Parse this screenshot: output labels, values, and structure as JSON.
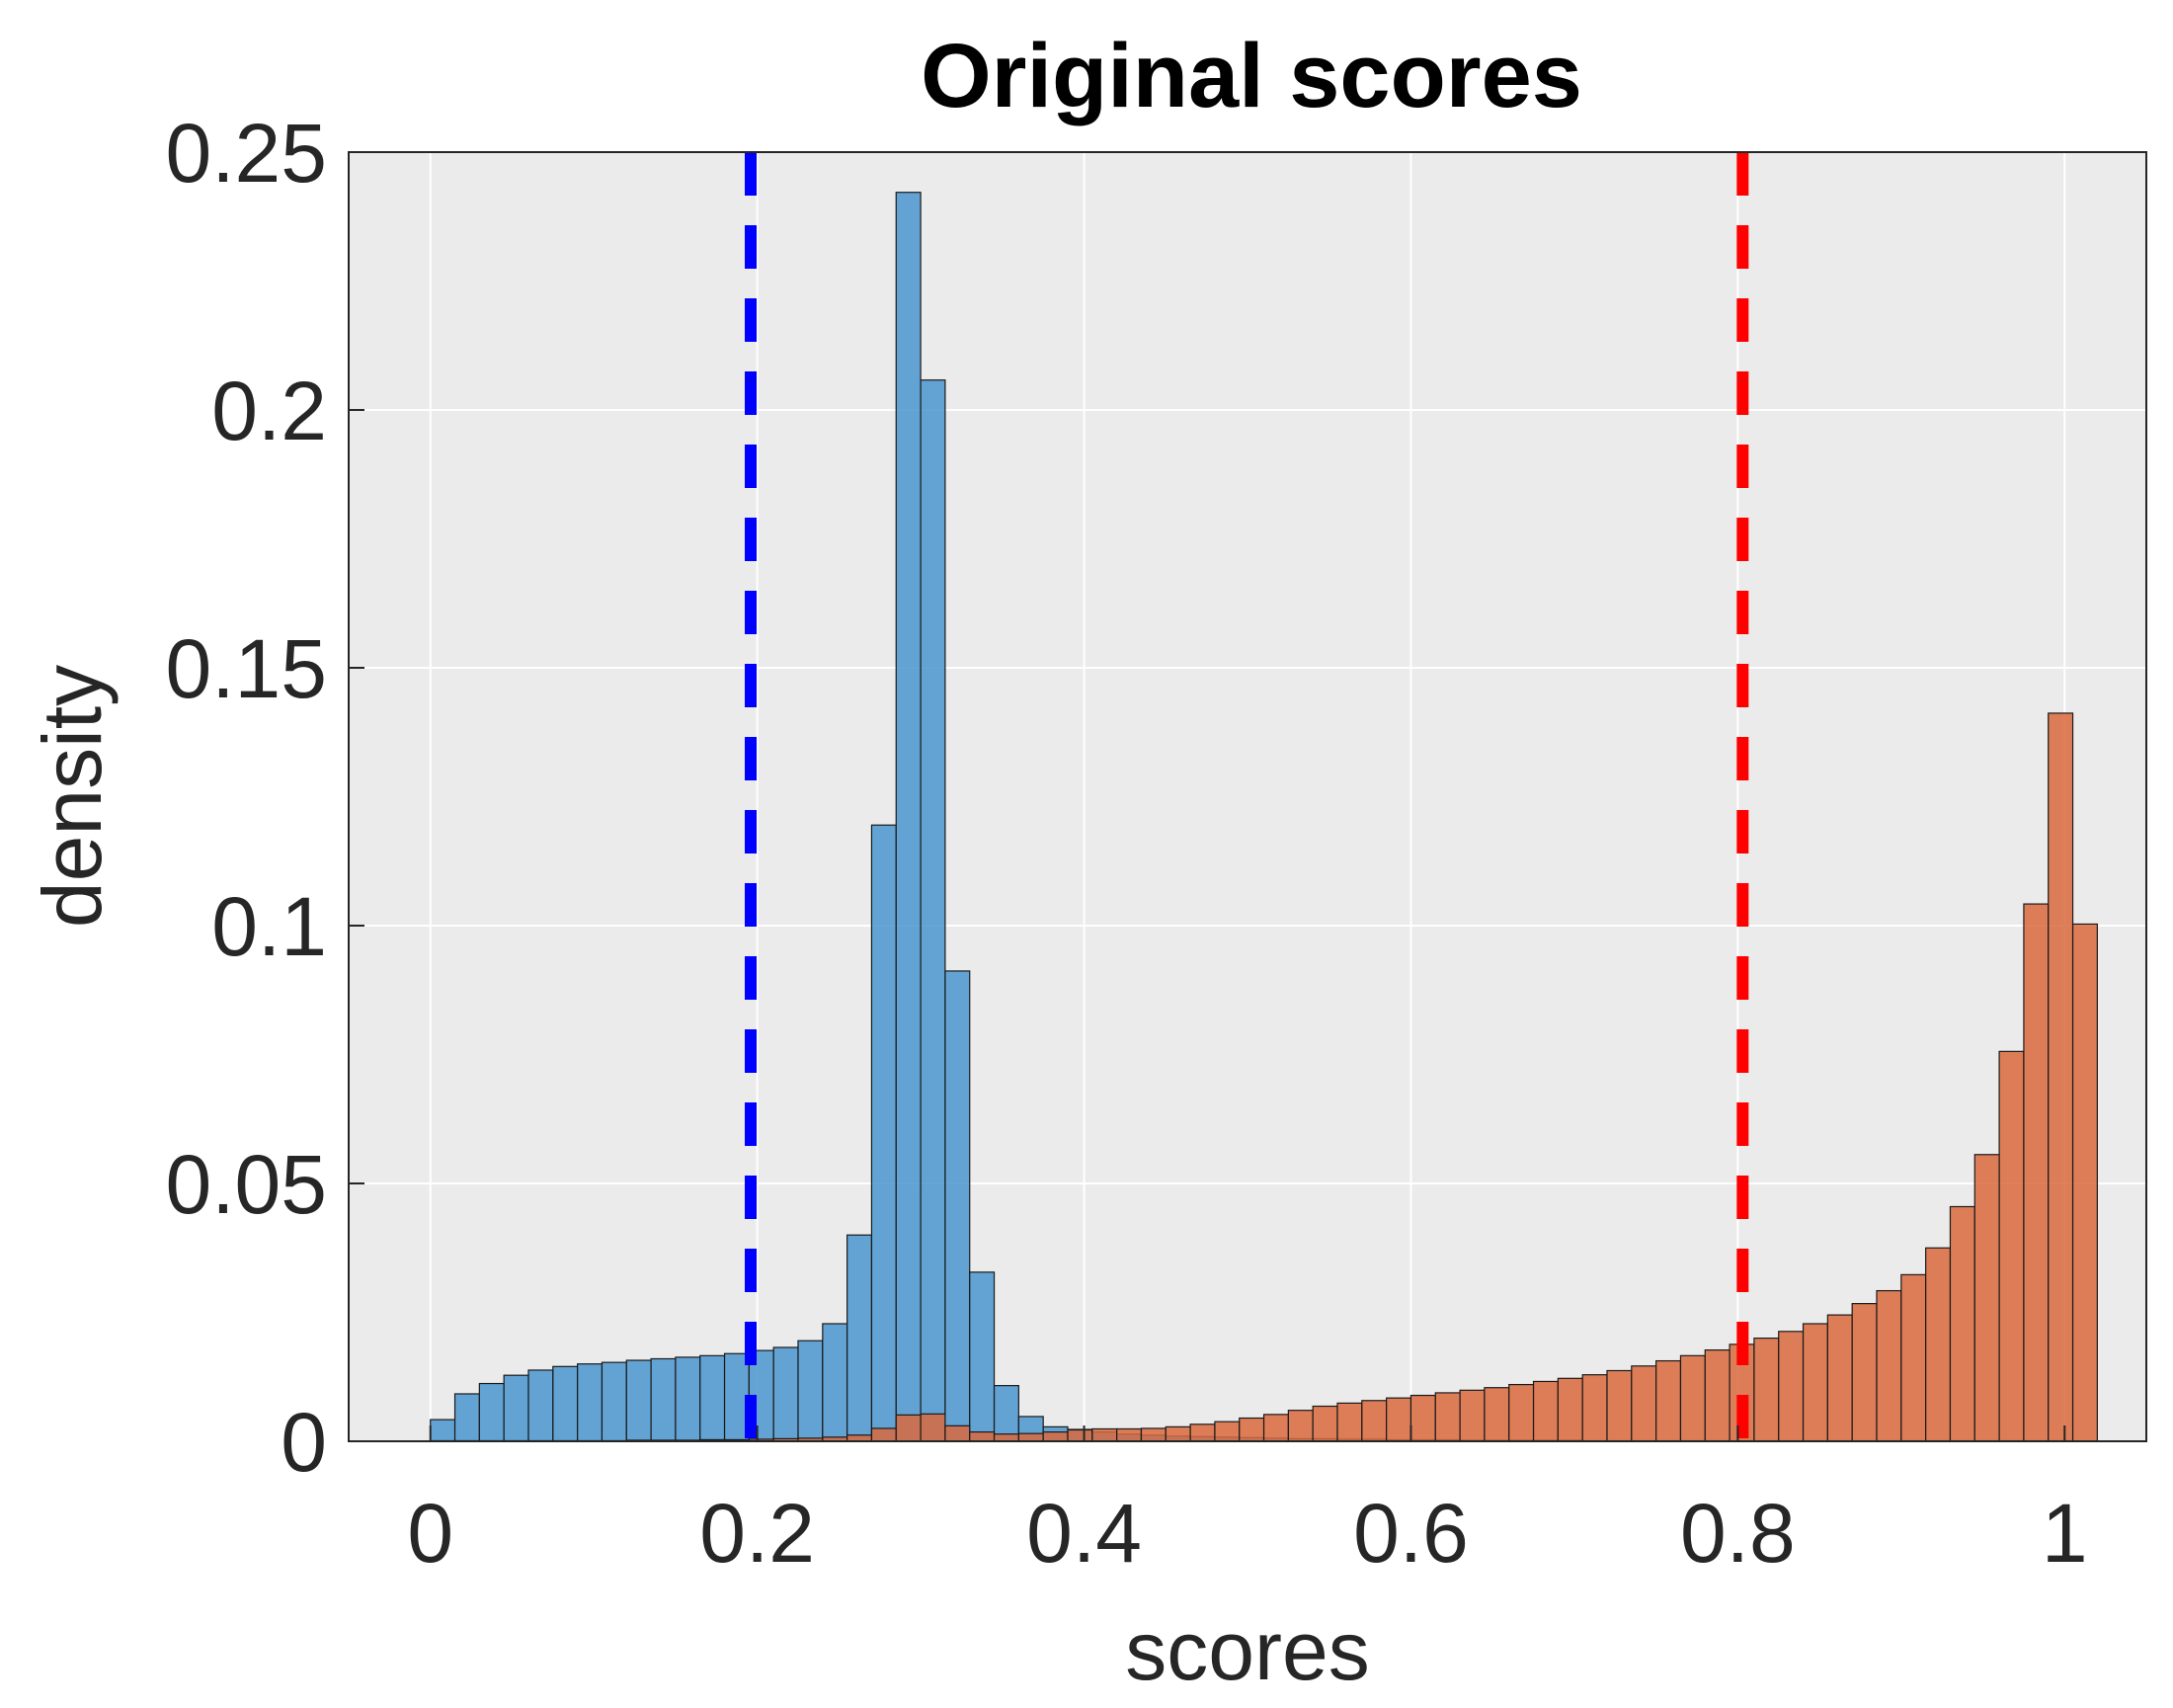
{
  "chart_data": {
    "type": "bar",
    "title": "Original scores",
    "xlabel": "scores",
    "ylabel": "density",
    "xlim": [
      -0.05,
      1.05
    ],
    "ylim": [
      0,
      0.25
    ],
    "xticks": [
      "0",
      "0.2",
      "0.4",
      "0.6",
      "0.8",
      "1"
    ],
    "xtick_values": [
      0,
      0.2,
      0.4,
      0.6,
      0.8,
      1
    ],
    "yticks": [
      "0",
      "0.05",
      "0.1",
      "0.15",
      "0.2",
      "0.25"
    ],
    "ytick_values": [
      0,
      0.05,
      0.1,
      0.15,
      0.2,
      0.25
    ],
    "grid": true,
    "bin_width": 0.015,
    "bin_start": 0,
    "series": [
      {
        "color": "#4a96cf",
        "values": [
          0.0042,
          0.0092,
          0.0112,
          0.0128,
          0.0138,
          0.0145,
          0.015,
          0.0153,
          0.0157,
          0.016,
          0.0163,
          0.0166,
          0.017,
          0.0176,
          0.0182,
          0.0195,
          0.0228,
          0.04,
          0.1195,
          0.2422,
          0.2058,
          0.0912,
          0.0328,
          0.0108,
          0.0048,
          0.0028,
          0.0023,
          0.0018,
          0.0014,
          0.0012,
          0.001,
          0.0009,
          0.0008,
          0.0007,
          0.0006,
          0.0005,
          0.0005,
          0.0004,
          0.0004,
          0.0003,
          0.0003,
          0.0003,
          0.0002,
          0.0002,
          0.0002,
          0.0002,
          0.0002,
          0.0001,
          0.0001,
          0.0001,
          0.0001,
          0.0001,
          0.0001,
          0.0001,
          0.0001,
          0.0001,
          0.0001,
          0.0001,
          0.0001,
          0.0001,
          0.0001,
          0.0001,
          0.0001,
          0.0001,
          0.0001,
          0.0001,
          0.0001
        ]
      },
      {
        "color": "#d96a3d",
        "values": [
          0.0001,
          0.0001,
          0.0001,
          0.0001,
          0.0001,
          0.0001,
          0.0001,
          0.0001,
          0.0002,
          0.0002,
          0.0002,
          0.0003,
          0.0003,
          0.0004,
          0.0005,
          0.0006,
          0.0008,
          0.0012,
          0.0025,
          0.0051,
          0.0053,
          0.003,
          0.0018,
          0.0014,
          0.0015,
          0.0018,
          0.0022,
          0.0024,
          0.0024,
          0.0025,
          0.0028,
          0.0033,
          0.0038,
          0.0045,
          0.0052,
          0.006,
          0.0068,
          0.0074,
          0.0079,
          0.0084,
          0.0089,
          0.0094,
          0.0099,
          0.0104,
          0.011,
          0.0116,
          0.0122,
          0.0129,
          0.0137,
          0.0146,
          0.0156,
          0.0166,
          0.0177,
          0.0188,
          0.02,
          0.0213,
          0.0228,
          0.0245,
          0.0267,
          0.0292,
          0.0323,
          0.0375,
          0.0455,
          0.0556,
          0.0756,
          0.1042,
          0.1412,
          0.1003
        ]
      }
    ],
    "vlines": [
      {
        "x": 0.196,
        "color": "#0000ff",
        "style": "dashed"
      },
      {
        "x": 0.803,
        "color": "#ff0000",
        "style": "dashed"
      }
    ]
  }
}
